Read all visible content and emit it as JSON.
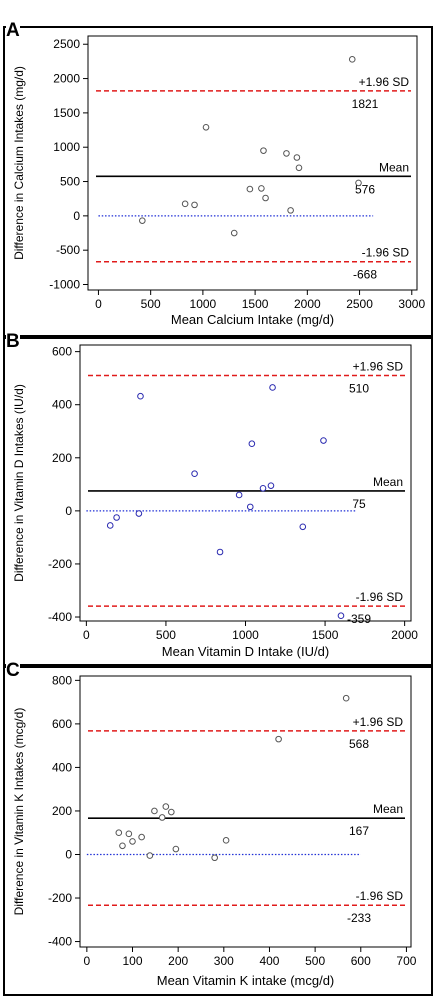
{
  "chart_data": [
    {
      "panel_label": "A",
      "type": "scatter",
      "xlabel": "Mean Calcium Intake (mg/d)",
      "ylabel": "Difference in Calcium Intakes (mg/d)",
      "xlim": [
        -100,
        3050
      ],
      "ylim": [
        -1080,
        2620
      ],
      "xticks": [
        0,
        500,
        1000,
        1500,
        2000,
        2500,
        3000
      ],
      "yticks": [
        -1000,
        -500,
        0,
        500,
        1000,
        1500,
        2000,
        2500
      ],
      "zero_line_end": 2630,
      "marker_color": "#555555",
      "lines": {
        "upper": {
          "value": 1821,
          "label": "+1.96 SD",
          "value_text": "1821"
        },
        "mean": {
          "value": 576,
          "label": "Mean",
          "value_text": "576"
        },
        "lower": {
          "value": -668,
          "label": "-1.96 SD",
          "value_text": "-668"
        }
      },
      "points": [
        {
          "x": 420,
          "y": -70
        },
        {
          "x": 830,
          "y": 175
        },
        {
          "x": 920,
          "y": 160
        },
        {
          "x": 1030,
          "y": 1290
        },
        {
          "x": 1300,
          "y": -250
        },
        {
          "x": 1450,
          "y": 390
        },
        {
          "x": 1560,
          "y": 400
        },
        {
          "x": 1580,
          "y": 950
        },
        {
          "x": 1600,
          "y": 260
        },
        {
          "x": 1800,
          "y": 910
        },
        {
          "x": 1840,
          "y": 80
        },
        {
          "x": 1900,
          "y": 850
        },
        {
          "x": 1920,
          "y": 700
        },
        {
          "x": 2430,
          "y": 2280
        },
        {
          "x": 2490,
          "y": 480
        }
      ]
    },
    {
      "panel_label": "B",
      "type": "scatter",
      "xlabel": "Mean Vitamin D Intake (IU/d)",
      "ylabel": "Difference in Vitamin D Intakes (IU/d)",
      "xlim": [
        -40,
        2040
      ],
      "ylim": [
        -415,
        625
      ],
      "xticks": [
        0,
        500,
        1000,
        1500,
        2000
      ],
      "yticks": [
        -400,
        -200,
        0,
        200,
        400,
        600
      ],
      "zero_line_end": 1700,
      "marker_color": "#2b2bb0",
      "lines": {
        "upper": {
          "value": 510,
          "label": "+1.96 SD",
          "value_text": "510"
        },
        "mean": {
          "value": 75,
          "label": "Mean",
          "value_text": "75"
        },
        "lower": {
          "value": -359,
          "label": "-1.96 SD",
          "value_text": "-359"
        }
      },
      "points": [
        {
          "x": 150,
          "y": -55
        },
        {
          "x": 190,
          "y": -25
        },
        {
          "x": 330,
          "y": -10
        },
        {
          "x": 340,
          "y": 432
        },
        {
          "x": 680,
          "y": 140
        },
        {
          "x": 840,
          "y": -155
        },
        {
          "x": 960,
          "y": 60
        },
        {
          "x": 1030,
          "y": 15
        },
        {
          "x": 1040,
          "y": 253
        },
        {
          "x": 1110,
          "y": 85
        },
        {
          "x": 1160,
          "y": 95
        },
        {
          "x": 1170,
          "y": 465
        },
        {
          "x": 1360,
          "y": -60
        },
        {
          "x": 1490,
          "y": 265
        },
        {
          "x": 1600,
          "y": -395
        }
      ]
    },
    {
      "panel_label": "C",
      "type": "scatter",
      "xlabel": "Mean Vitamin K intake (mcg/d)",
      "ylabel": "Difference in Vitamin K Intakes (mcg/d)",
      "xlim": [
        -15,
        710
      ],
      "ylim": [
        -425,
        820
      ],
      "xticks": [
        0,
        100,
        200,
        300,
        400,
        500,
        600,
        700
      ],
      "yticks": [
        -400,
        -200,
        0,
        200,
        400,
        600,
        800
      ],
      "zero_line_end": 600,
      "marker_color": "#555555",
      "lines": {
        "upper": {
          "value": 568,
          "label": "+1.96 SD",
          "value_text": "568"
        },
        "mean": {
          "value": 167,
          "label": "Mean",
          "value_text": "167"
        },
        "lower": {
          "value": -233,
          "label": "-1.96 SD",
          "value_text": "-233"
        }
      },
      "points": [
        {
          "x": 70,
          "y": 100
        },
        {
          "x": 78,
          "y": 40
        },
        {
          "x": 92,
          "y": 95
        },
        {
          "x": 100,
          "y": 60
        },
        {
          "x": 120,
          "y": 80
        },
        {
          "x": 138,
          "y": -5
        },
        {
          "x": 148,
          "y": 200
        },
        {
          "x": 165,
          "y": 170
        },
        {
          "x": 173,
          "y": 220
        },
        {
          "x": 185,
          "y": 195
        },
        {
          "x": 195,
          "y": 25
        },
        {
          "x": 280,
          "y": -15
        },
        {
          "x": 305,
          "y": 65
        },
        {
          "x": 420,
          "y": 530
        },
        {
          "x": 568,
          "y": 718
        }
      ]
    }
  ]
}
